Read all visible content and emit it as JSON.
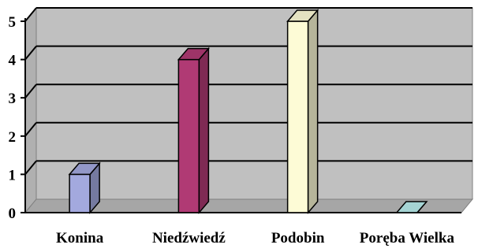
{
  "chart_data": {
    "type": "bar",
    "style": "3d-column",
    "categories": [
      "Konina",
      "Niedźwiedź",
      "Podobin",
      "Poręba Wielka"
    ],
    "values": [
      1,
      4,
      5,
      0
    ],
    "colors": [
      "#a3a9de",
      "#b03a74",
      "#fdfbd6",
      "#b7ecec"
    ],
    "y_ticks": [
      "0",
      "1",
      "2",
      "3",
      "4",
      "5"
    ],
    "ylim": [
      0,
      5
    ],
    "title": "",
    "xlabel": "",
    "ylabel": "",
    "grid": true,
    "legend": "none",
    "wall_color": "#c0c0c0",
    "floor_color": "#a6a6a6"
  }
}
